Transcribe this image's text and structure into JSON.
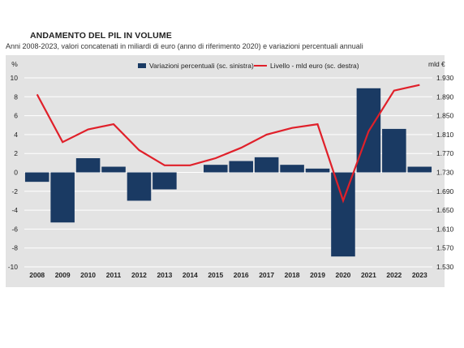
{
  "chart_data": {
    "type": "bar+line",
    "title": "ANDAMENTO DEL PIL IN VOLUME",
    "subtitle": "Anni 2008-2023, valori concatenati in miliardi di euro (anno di riferimento 2020) e variazioni percentuali annuali",
    "categories": [
      "2008",
      "2009",
      "2010",
      "2011",
      "2012",
      "2013",
      "2014",
      "2015",
      "2016",
      "2017",
      "2018",
      "2019",
      "2020",
      "2021",
      "2022",
      "2023"
    ],
    "y_left_unit": "%",
    "y_right_unit": "mld €",
    "y_left_ticks": [
      "10",
      "8",
      "6",
      "4",
      "2",
      "0",
      "-2",
      "-4",
      "-6",
      "-8",
      "-10"
    ],
    "y_right_ticks": [
      "1.930",
      "1.890",
      "1.850",
      "1.810",
      "1.770",
      "1.730",
      "1.690",
      "1.650",
      "1.610",
      "1.570",
      "1.530"
    ],
    "ylim_left": [
      -10,
      10
    ],
    "ylim_right": [
      1530,
      1930
    ],
    "grid": true,
    "legend_position": "top",
    "colors": {
      "bars": "#1a3a63",
      "line": "#e0202a",
      "plot_bg": "#e3e3e3",
      "grid": "#ffffff"
    },
    "series": [
      {
        "name": "Variazioni percentuali (sc. sinistra)",
        "type": "bar",
        "axis": "left",
        "values": [
          -1.0,
          -5.3,
          1.5,
          0.6,
          -3.0,
          -1.8,
          0.0,
          0.8,
          1.2,
          1.6,
          0.8,
          0.4,
          -8.9,
          8.9,
          4.6,
          0.6
        ]
      },
      {
        "name": "Livello - mld euro (sc. destra)",
        "type": "line",
        "axis": "right",
        "values": [
          1895,
          1794,
          1821,
          1832,
          1777,
          1745,
          1745,
          1760,
          1782,
          1810,
          1824,
          1832,
          1670,
          1817,
          1903,
          1915
        ]
      }
    ]
  }
}
